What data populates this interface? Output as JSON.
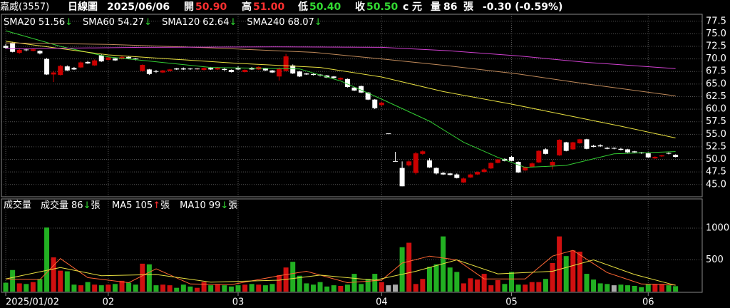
{
  "header": {
    "stock": "嘉威(3557)",
    "period": "日線圖",
    "date": "2025/06/06",
    "open_label": "開",
    "open": "50.90",
    "high_label": "高",
    "high": "51.00",
    "low_label": "低",
    "low": "50.40",
    "close_label": "收",
    "close": "50.50",
    "c": "c",
    "unit": "元",
    "volume_label": "量",
    "volume": "86",
    "volume_unit": "張",
    "change": "-0.30 (-0.59%)"
  },
  "chart_data": [
    {
      "type": "candlestick",
      "up_color": "#cc0000",
      "down_color": "#ffffff",
      "grid": true,
      "ylim": [
        42.7,
        78.6
      ],
      "yticks": [
        {
          "value": 45,
          "label": "45.0"
        },
        47.5,
        {
          "value": 50,
          "label": "50.0"
        },
        52.5,
        {
          "value": 55,
          "label": "55.0"
        },
        57.5,
        {
          "value": 60,
          "label": "60.0"
        },
        62.5,
        {
          "value": 65,
          "label": "65.0"
        },
        67.5,
        {
          "value": 70,
          "label": "70.0"
        },
        72.5,
        {
          "value": 75,
          "label": "75.0"
        },
        77.5
      ],
      "xlim": [
        -0.63,
        101.9
      ],
      "xticks": [
        {
          "value": 0,
          "label": "2025/01/02"
        },
        {
          "value": 15,
          "label": "02"
        },
        {
          "value": 34,
          "label": "03"
        },
        {
          "value": 55,
          "label": "04"
        },
        {
          "value": 74,
          "label": "05"
        },
        {
          "value": 94,
          "label": "06"
        }
      ],
      "open": [
        72.6,
        73.2,
        71.2,
        71.8,
        71.6,
        71.6,
        70.0,
        66.9,
        66.8,
        68.5,
        68.2,
        68.3,
        69.4,
        68.7,
        70.7,
        69.8,
        70.1,
        70.0,
        70.4,
        70.0,
        67.6,
        67.9,
        67.5,
        67.3,
        67.6,
        68.1,
        68.1,
        68.0,
        67.9,
        67.8,
        68.2,
        67.9,
        68.0,
        67.8,
        68.2,
        67.4,
        68.1,
        67.9,
        68.1,
        67.7,
        66.5,
        67.6,
        68.7,
        67.5,
        67.1,
        67.0,
        66.8,
        66.7,
        66.5,
        65.9,
        66.0,
        64.3,
        64.6,
        63.3,
        61.9,
        60.8,
        55.1,
        49.6,
        48.3,
        48.8,
        47.3,
        51.1,
        49.8,
        48.3,
        47.3,
        47.2,
        47.0,
        45.4,
        46.4,
        47.0,
        47.5,
        48.2,
        49.3,
        50.1,
        50.5,
        49.5,
        47.8,
        48.5,
        49.4,
        52.0,
        48.8,
        50.8,
        53.4,
        52.0,
        53.2,
        54.0,
        52.7,
        52.8,
        52.3,
        52.2,
        52.1,
        52.0,
        51.6,
        51.4,
        51.2,
        50.2,
        50.6,
        51.2,
        50.9
      ],
      "high": [
        73.0,
        73.4,
        72.0,
        72.0,
        72.0,
        71.7,
        70.2,
        67.6,
        68.8,
        68.7,
        68.4,
        69.5,
        69.6,
        69.9,
        70.9,
        70.5,
        70.2,
        70.6,
        70.5,
        70.2,
        68.9,
        68.0,
        67.8,
        67.8,
        68.0,
        68.2,
        68.3,
        68.2,
        68.2,
        68.3,
        68.4,
        68.4,
        68.2,
        67.9,
        68.5,
        67.9,
        68.4,
        68.5,
        68.2,
        67.8,
        68.3,
        71.0,
        68.9,
        67.6,
        67.2,
        67.1,
        67.0,
        66.8,
        66.6,
        66.3,
        66.1,
        64.4,
        64.7,
        63.4,
        62.0,
        61.5,
        55.1,
        51.5,
        49.6,
        49.8,
        51.5,
        51.8,
        50.2,
        48.4,
        47.5,
        47.3,
        47.2,
        46.4,
        47.2,
        47.6,
        48.2,
        49.4,
        50.1,
        50.2,
        50.7,
        49.6,
        48.6,
        49.4,
        51.8,
        52.2,
        49.8,
        54.0,
        53.5,
        53.5,
        54.1,
        54.1,
        52.9,
        53.0,
        52.5,
        52.4,
        52.3,
        52.1,
        51.7,
        51.5,
        51.3,
        50.6,
        50.9,
        51.4,
        51.0
      ],
      "low": [
        72.0,
        71.3,
        71.0,
        71.5,
        71.5,
        70.9,
        66.8,
        65.4,
        66.7,
        67.6,
        67.8,
        68.2,
        69.0,
        68.6,
        69.4,
        69.7,
        69.6,
        69.9,
        70.0,
        69.7,
        67.5,
        66.8,
        67.2,
        67.2,
        67.5,
        67.8,
        67.8,
        67.8,
        67.8,
        67.7,
        67.8,
        67.8,
        67.6,
        67.3,
        67.8,
        67.3,
        67.8,
        67.8,
        67.6,
        67.2,
        65.7,
        67.5,
        67.0,
        66.4,
        66.8,
        66.7,
        66.5,
        66.2,
        66.1,
        65.8,
        64.3,
        63.6,
        63.2,
        61.8,
        60.0,
        60.6,
        55.1,
        49.6,
        44.65,
        48.6,
        47.0,
        50.9,
        48.3,
        47.0,
        46.9,
        46.8,
        46.2,
        45.3,
        46.3,
        46.9,
        47.4,
        48.1,
        49.2,
        49.6,
        49.6,
        47.3,
        47.7,
        48.4,
        49.3,
        51.0,
        48.0,
        50.7,
        51.6,
        51.9,
        53.1,
        52.0,
        52.4,
        52.5,
        52.0,
        52.0,
        51.8,
        51.3,
        51.3,
        51.1,
        50.3,
        50.1,
        50.5,
        51.0,
        50.4
      ],
      "close": [
        72.2,
        71.4,
        71.8,
        71.7,
        71.9,
        71.1,
        66.9,
        67.3,
        68.6,
        67.7,
        67.9,
        69.3,
        69.1,
        69.7,
        69.5,
        70.3,
        69.7,
        70.4,
        70.1,
        69.9,
        68.8,
        67.0,
        67.4,
        67.7,
        67.9,
        67.9,
        67.9,
        67.9,
        68.0,
        68.2,
        67.9,
        68.3,
        67.8,
        67.4,
        67.9,
        67.8,
        67.9,
        68.4,
        67.7,
        67.3,
        68.1,
        70.5,
        67.1,
        66.5,
        66.9,
        66.8,
        66.7,
        66.3,
        66.2,
        66.2,
        64.4,
        63.7,
        63.3,
        61.9,
        60.2,
        61.3,
        55.1,
        49.6,
        44.65,
        49.6,
        51.2,
        51.6,
        48.4,
        47.2,
        47.0,
        46.9,
        46.3,
        46.2,
        47.0,
        47.5,
        48.0,
        49.3,
        50.0,
        49.7,
        49.7,
        47.4,
        48.5,
        49.2,
        51.7,
        51.1,
        49.5,
        53.9,
        51.7,
        53.4,
        54.0,
        52.1,
        52.5,
        52.6,
        52.1,
        52.2,
        51.9,
        51.4,
        51.4,
        51.2,
        50.4,
        50.5,
        50.8,
        51.1,
        50.5
      ],
      "series": [
        {
          "name": "SMA20",
          "color": "#33cc33",
          "label_value": 51.56,
          "label_arrow": "↓",
          "x": [
            0,
            8,
            15,
            30,
            43,
            49,
            55,
            62,
            67,
            72,
            76,
            82,
            89,
            98
          ],
          "values": [
            75.6,
            72.5,
            70.4,
            68.3,
            68.0,
            65.6,
            62.0,
            57.6,
            53.4,
            50.4,
            48.4,
            48.8,
            51.1,
            51.56
          ]
        },
        {
          "name": "SMA60",
          "color": "#e8e040",
          "label_value": 54.27,
          "label_arrow": "↓",
          "x": [
            0,
            15,
            34,
            46,
            55,
            64,
            74,
            82,
            90,
            98
          ],
          "values": [
            73.5,
            70.8,
            69.1,
            68.3,
            66.4,
            63.5,
            61.0,
            58.8,
            56.6,
            54.27
          ]
        },
        {
          "name": "SMA120",
          "color": "#c08a5a",
          "label_value": 62.64,
          "label_arrow": "↓",
          "x": [
            0,
            15,
            30,
            45,
            55,
            65,
            75,
            85,
            98
          ],
          "values": [
            73.2,
            72.9,
            72.2,
            71.3,
            70.0,
            68.6,
            67.0,
            65.0,
            62.64
          ]
        },
        {
          "name": "SMA240",
          "color": "#d040d0",
          "label_value": 68.07,
          "label_arrow": "↓",
          "x": [
            0,
            20,
            40,
            55,
            65,
            75,
            85,
            98
          ],
          "values": [
            72.0,
            72.3,
            72.4,
            72.3,
            71.6,
            70.6,
            69.3,
            68.07
          ]
        }
      ]
    },
    {
      "type": "bar",
      "title": "成交量",
      "name": "成交量",
      "label_value": 86,
      "label_arrow": "↓",
      "label_unit": "張",
      "up_color": "#d01010",
      "down_color": "#22b022",
      "flat_color": "#aaaaaa",
      "ylim": [
        0,
        1450
      ],
      "yticks": [
        500,
        1000
      ],
      "values": [
        140,
        340,
        130,
        120,
        150,
        200,
        1010,
        540,
        330,
        320,
        110,
        100,
        150,
        110,
        100,
        110,
        120,
        170,
        140,
        110,
        440,
        430,
        100,
        110,
        100,
        60,
        110,
        80,
        60,
        150,
        100,
        110,
        100,
        80,
        100,
        110,
        120,
        110,
        100,
        120,
        260,
        380,
        470,
        250,
        130,
        110,
        150,
        80,
        100,
        90,
        110,
        280,
        120,
        200,
        280,
        150,
        100,
        110,
        700,
        770,
        120,
        200,
        390,
        430,
        870,
        380,
        310,
        130,
        210,
        190,
        280,
        100,
        180,
        120,
        310,
        110,
        110,
        150,
        150,
        200,
        450,
        870,
        560,
        650,
        630,
        280,
        190,
        130,
        120,
        100,
        110,
        100,
        90,
        70,
        120,
        120,
        120,
        100,
        86
      ],
      "series": [
        {
          "name": "MA5",
          "color": "#ff6633",
          "label_value": 105,
          "label_arrow": "↑",
          "label_unit": "張",
          "x": [
            0,
            5,
            8,
            12,
            18,
            22,
            27,
            33,
            40,
            44,
            50,
            55,
            58,
            62,
            66,
            70,
            76,
            80,
            83,
            88,
            93,
            98
          ],
          "values": [
            200,
            190,
            520,
            220,
            140,
            360,
            120,
            110,
            250,
            320,
            140,
            180,
            450,
            560,
            500,
            200,
            200,
            560,
            650,
            300,
            120,
            105
          ]
        },
        {
          "name": "MA10",
          "color": "#e8e040",
          "label_value": 99,
          "label_arrow": "↓",
          "label_unit": "張",
          "x": [
            0,
            8,
            14,
            22,
            30,
            40,
            46,
            54,
            60,
            66,
            72,
            80,
            86,
            92,
            98
          ],
          "values": [
            200,
            380,
            250,
            270,
            150,
            180,
            260,
            180,
            320,
            500,
            280,
            320,
            500,
            270,
            99
          ]
        }
      ]
    }
  ]
}
